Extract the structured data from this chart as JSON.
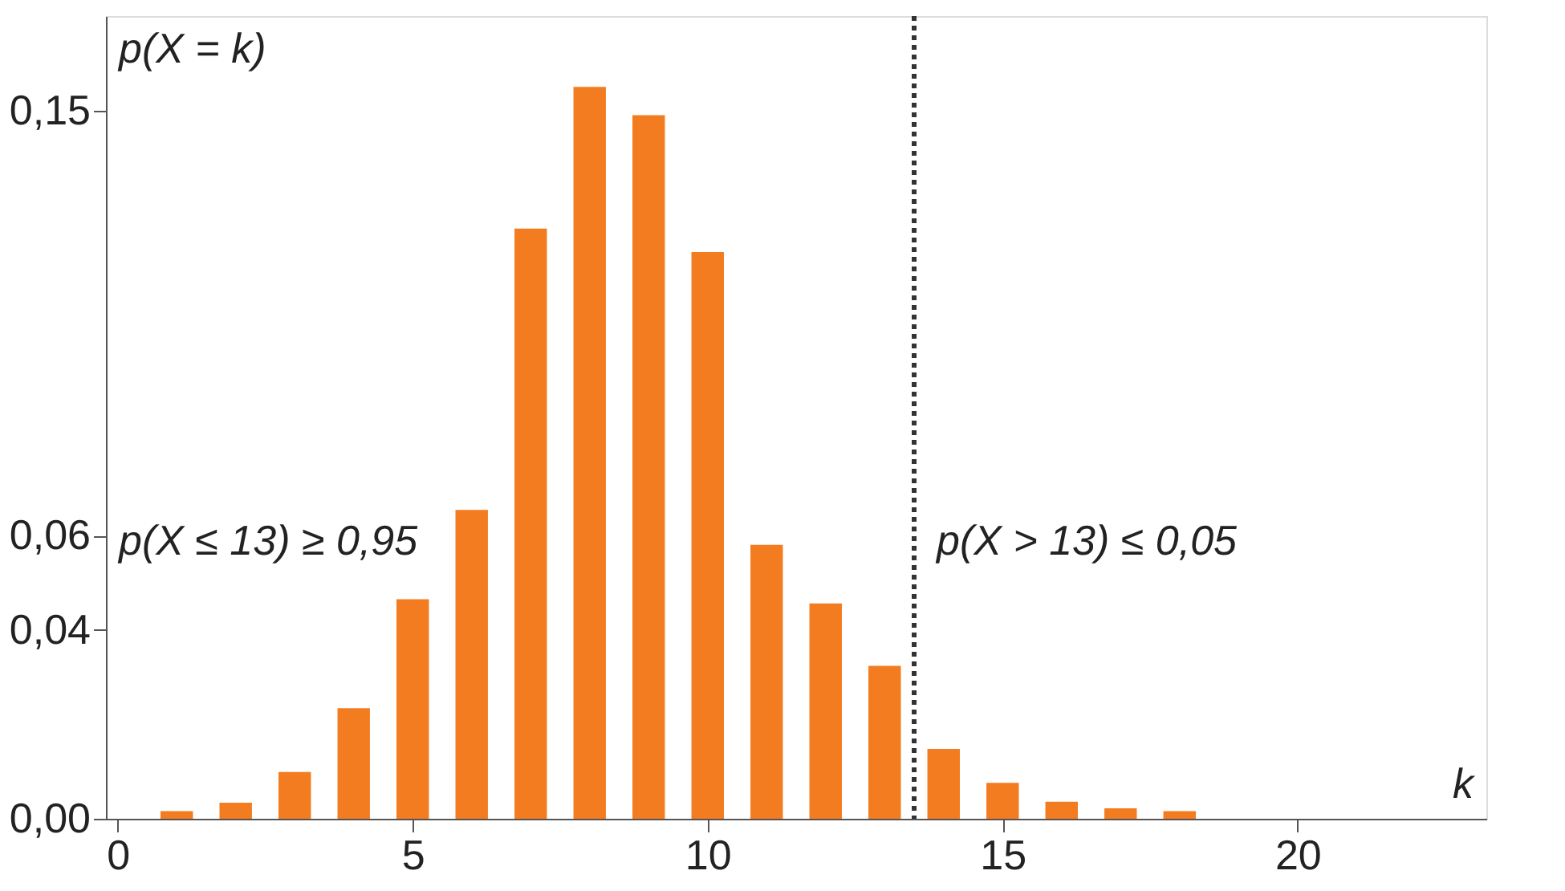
{
  "chart_data": {
    "type": "bar",
    "ylabel": "p(X = k)",
    "xlabel": "k",
    "x": [
      1,
      2,
      3,
      4,
      5,
      6,
      7,
      8,
      9,
      10,
      11,
      12,
      13,
      14,
      15,
      16,
      17,
      18
    ],
    "values": [
      0.0016,
      0.0034,
      0.0099,
      0.0234,
      0.0465,
      0.0654,
      0.125,
      0.155,
      0.149,
      0.12,
      0.058,
      0.0456,
      0.0324,
      0.0148,
      0.0076,
      0.0036,
      0.0022,
      0.0016
    ],
    "color": "#f47c20",
    "xlim": [
      -0.2,
      23.2
    ],
    "xticks": [
      0,
      5,
      10,
      15,
      20
    ],
    "ylim": [
      0,
      0.17
    ],
    "yticks": [
      {
        "value": 0,
        "label": "0,00"
      },
      {
        "value": 0.04,
        "label": "0,04"
      },
      {
        "value": 0.06,
        "label": "0,06"
      },
      {
        "value": 0.15,
        "label": "0,15"
      }
    ],
    "ref_lines": [
      {
        "axis": "x",
        "value": 13.5,
        "color": "#333333",
        "line_style": "dotted"
      }
    ],
    "annotations": [
      "p(X ≤ 13) ≥ 0,95",
      "p(X > 13) ≤ 0,05"
    ],
    "grid": false
  }
}
